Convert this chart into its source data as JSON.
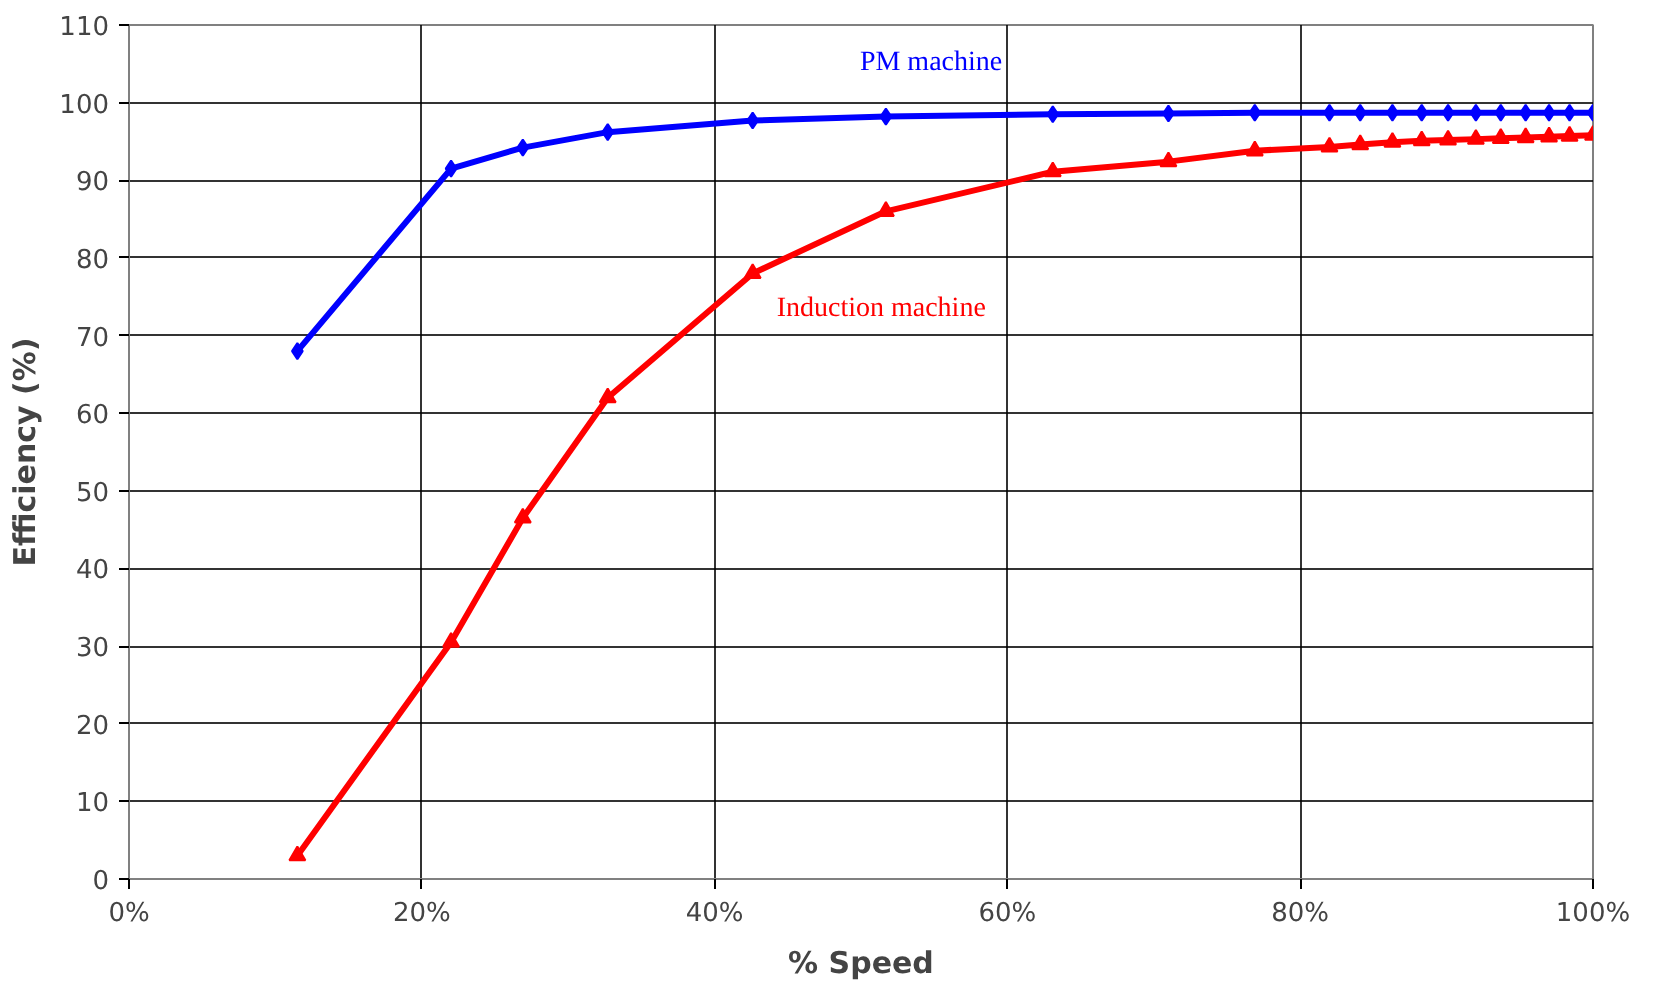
{
  "chart_data": {
    "type": "line",
    "xlabel": "% Speed",
    "ylabel": "Efficiency (%)",
    "x": [
      11.5,
      22,
      26.9,
      32.7,
      42.6,
      51.7,
      63.1,
      71,
      76.9,
      82,
      84.1,
      86.3,
      88.3,
      90.1,
      92,
      93.7,
      95.4,
      97,
      98.4,
      100
    ],
    "series": [
      {
        "name": "PM machine",
        "color": "#0000ff",
        "marker": "diamond",
        "values": [
          68,
          91.5,
          94.2,
          96.2,
          97.7,
          98.2,
          98.5,
          98.6,
          98.7,
          98.7,
          98.7,
          98.7,
          98.7,
          98.7,
          98.7,
          98.7,
          98.7,
          98.7,
          98.7,
          98.7
        ]
      },
      {
        "name": "Induction machine",
        "color": "#ff0000",
        "marker": "triangle",
        "values": [
          3,
          30.5,
          46.5,
          62,
          78,
          86,
          91.1,
          92.4,
          93.8,
          94.3,
          94.6,
          94.9,
          95.1,
          95.2,
          95.3,
          95.4,
          95.5,
          95.6,
          95.7,
          95.8
        ]
      }
    ],
    "xlim": [
      0,
      100
    ],
    "xticks": [
      {
        "value": 0,
        "label": "0%"
      },
      {
        "value": 20,
        "label": "20%"
      },
      {
        "value": 40,
        "label": "40%"
      },
      {
        "value": 60,
        "label": "60%"
      },
      {
        "value": 80,
        "label": "80%"
      },
      {
        "value": 100,
        "label": "100%"
      }
    ],
    "ylim": [
      0,
      110
    ],
    "yticks": [
      0,
      10,
      20,
      30,
      40,
      50,
      60,
      70,
      80,
      90,
      100,
      110
    ],
    "grid": true,
    "legend": false,
    "line_style": "solid"
  }
}
